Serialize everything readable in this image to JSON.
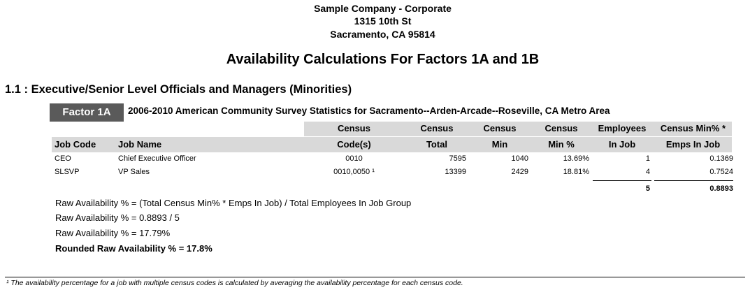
{
  "header": {
    "company_name": "Sample Company - Corporate",
    "address_line1": "1315 10th St",
    "address_line2": "Sacramento, CA 95814"
  },
  "report_title": "Availability Calculations For Factors 1A and 1B",
  "section_title": "1.1 : Executive/Senior Level Officials and Managers (Minorities)",
  "factor": {
    "badge": "Factor 1A",
    "description": "2006-2010 American Community Survey Statistics for Sacramento--Arden-Arcade--Roseville, CA Metro Area"
  },
  "table": {
    "headers": {
      "job_code": "Job Code",
      "job_name": "Job Name",
      "census_codes_1": "Census",
      "census_codes_2": "Code(s)",
      "census_total_1": "Census",
      "census_total_2": "Total",
      "census_min_1": "Census",
      "census_min_2": "Min",
      "census_min_pct_1": "Census",
      "census_min_pct_2": "Min %",
      "employees_1": "Employees",
      "employees_2": "In Job",
      "census_min_emps_1": "Census Min% *",
      "census_min_emps_2": "Emps In Job"
    },
    "rows": [
      {
        "job_code": "CEO",
        "job_name": "Chief Executive Officer",
        "census_codes": "0010",
        "census_total": "7595",
        "census_min": "1040",
        "census_min_pct": "13.69%",
        "employees": "1",
        "census_min_emps": "0.1369"
      },
      {
        "job_code": "SLSVP",
        "job_name": "VP Sales",
        "census_codes": "0010,0050 ¹",
        "census_total": "13399",
        "census_min": "2429",
        "census_min_pct": "18.81%",
        "employees": "4",
        "census_min_emps": "0.7524"
      }
    ],
    "totals": {
      "employees": "5",
      "census_min_emps": "0.8893"
    }
  },
  "calculations": {
    "formula": "Raw Availability % = (Total Census Min% * Emps In Job) / Total Employees In Job Group",
    "step1": "Raw Availability % = 0.8893 / 5",
    "step2": "Raw Availability % = 17.79%",
    "result": "Rounded Raw Availability % = 17.8%"
  },
  "footnote": "¹ The availability percentage for a job with multiple census codes is calculated by averaging the availability percentage for each census code."
}
